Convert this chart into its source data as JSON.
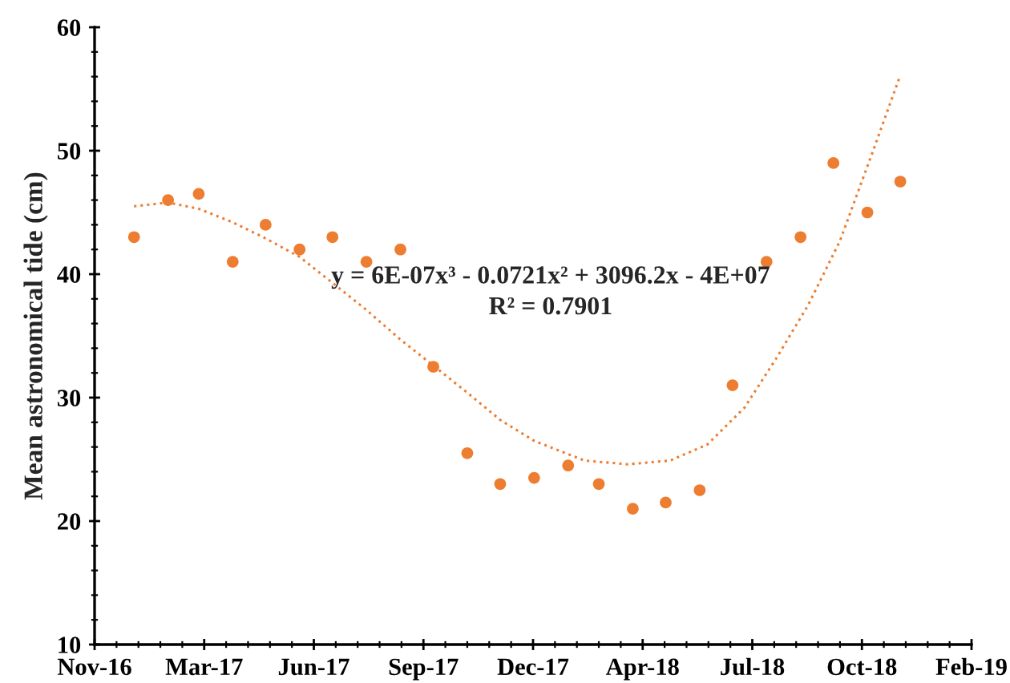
{
  "chart_data": {
    "type": "scatter",
    "ylabel": "Mean astronomical tide (cm)",
    "x": [
      "2016-12-31",
      "2017-01-31",
      "2017-02-28",
      "2017-03-31",
      "2017-04-30",
      "2017-05-31",
      "2017-06-30",
      "2017-07-31",
      "2017-08-31",
      "2017-09-30",
      "2017-10-31",
      "2017-11-30",
      "2017-12-31",
      "2018-01-31",
      "2018-02-28",
      "2018-03-31",
      "2018-04-30",
      "2018-05-31",
      "2018-06-30",
      "2018-07-31",
      "2018-08-31",
      "2018-09-30",
      "2018-10-31",
      "2018-11-30"
    ],
    "series": [
      {
        "color": "#ed7d31",
        "marker": "circle",
        "values": [
          43,
          46,
          46.5,
          41,
          44,
          42,
          43,
          41,
          42,
          32.5,
          25.5,
          23,
          23.5,
          24.5,
          23,
          21,
          21.5,
          22.5,
          31,
          41,
          43,
          49,
          45,
          47.5
        ]
      },
      {
        "type": "line",
        "color": "#ed7d31",
        "line_style": "dotted",
        "x": [
          "2016-12-31",
          "2017-01-31",
          "2017-02-28",
          "2017-03-31",
          "2017-04-30",
          "2017-05-31",
          "2017-06-30",
          "2017-07-31",
          "2017-08-31",
          "2017-09-30",
          "2017-10-31",
          "2017-11-30",
          "2017-12-31",
          "2018-02-15",
          "2018-03-26",
          "2018-05-04",
          "2018-06-07",
          "2018-07-11",
          "2018-08-09",
          "2018-09-07",
          "2018-10-06",
          "2018-11-04",
          "2018-11-30"
        ],
        "values": [
          45.5,
          45.8,
          45.3,
          44.2,
          42.9,
          41.4,
          39.3,
          37.1,
          34.7,
          32.6,
          30.4,
          28.2,
          26.5,
          24.9,
          24.6,
          24.9,
          26.2,
          29.2,
          33.2,
          37.5,
          42.7,
          49.7,
          56.1
        ]
      }
    ],
    "xlim": [
      "2016-11-25",
      "2019-02-03"
    ],
    "xticks": [
      {
        "value": "2016-11-25",
        "label": "Nov-16"
      },
      {
        "value": "2017-03-05",
        "label": "Mar-17"
      },
      {
        "value": "2017-06-13",
        "label": "Jun-17"
      },
      {
        "value": "2017-09-21",
        "label": "Sep-17"
      },
      {
        "value": "2017-12-30",
        "label": "Dec-17"
      },
      {
        "value": "2018-04-09",
        "label": "Apr-18"
      },
      {
        "value": "2018-07-18",
        "label": "Jul-18"
      },
      {
        "value": "2018-10-26",
        "label": "Oct-18"
      },
      {
        "value": "2019-02-03",
        "label": "Feb-19"
      }
    ],
    "ylim": [
      10,
      60
    ],
    "yticks": [
      10,
      20,
      30,
      40,
      50,
      60
    ],
    "annotations": [
      "y = 6E-07x³ - 0.0721x² + 3096.2x - 4E+07",
      "R² = 0.7901"
    ],
    "grid": false,
    "legend": false
  }
}
